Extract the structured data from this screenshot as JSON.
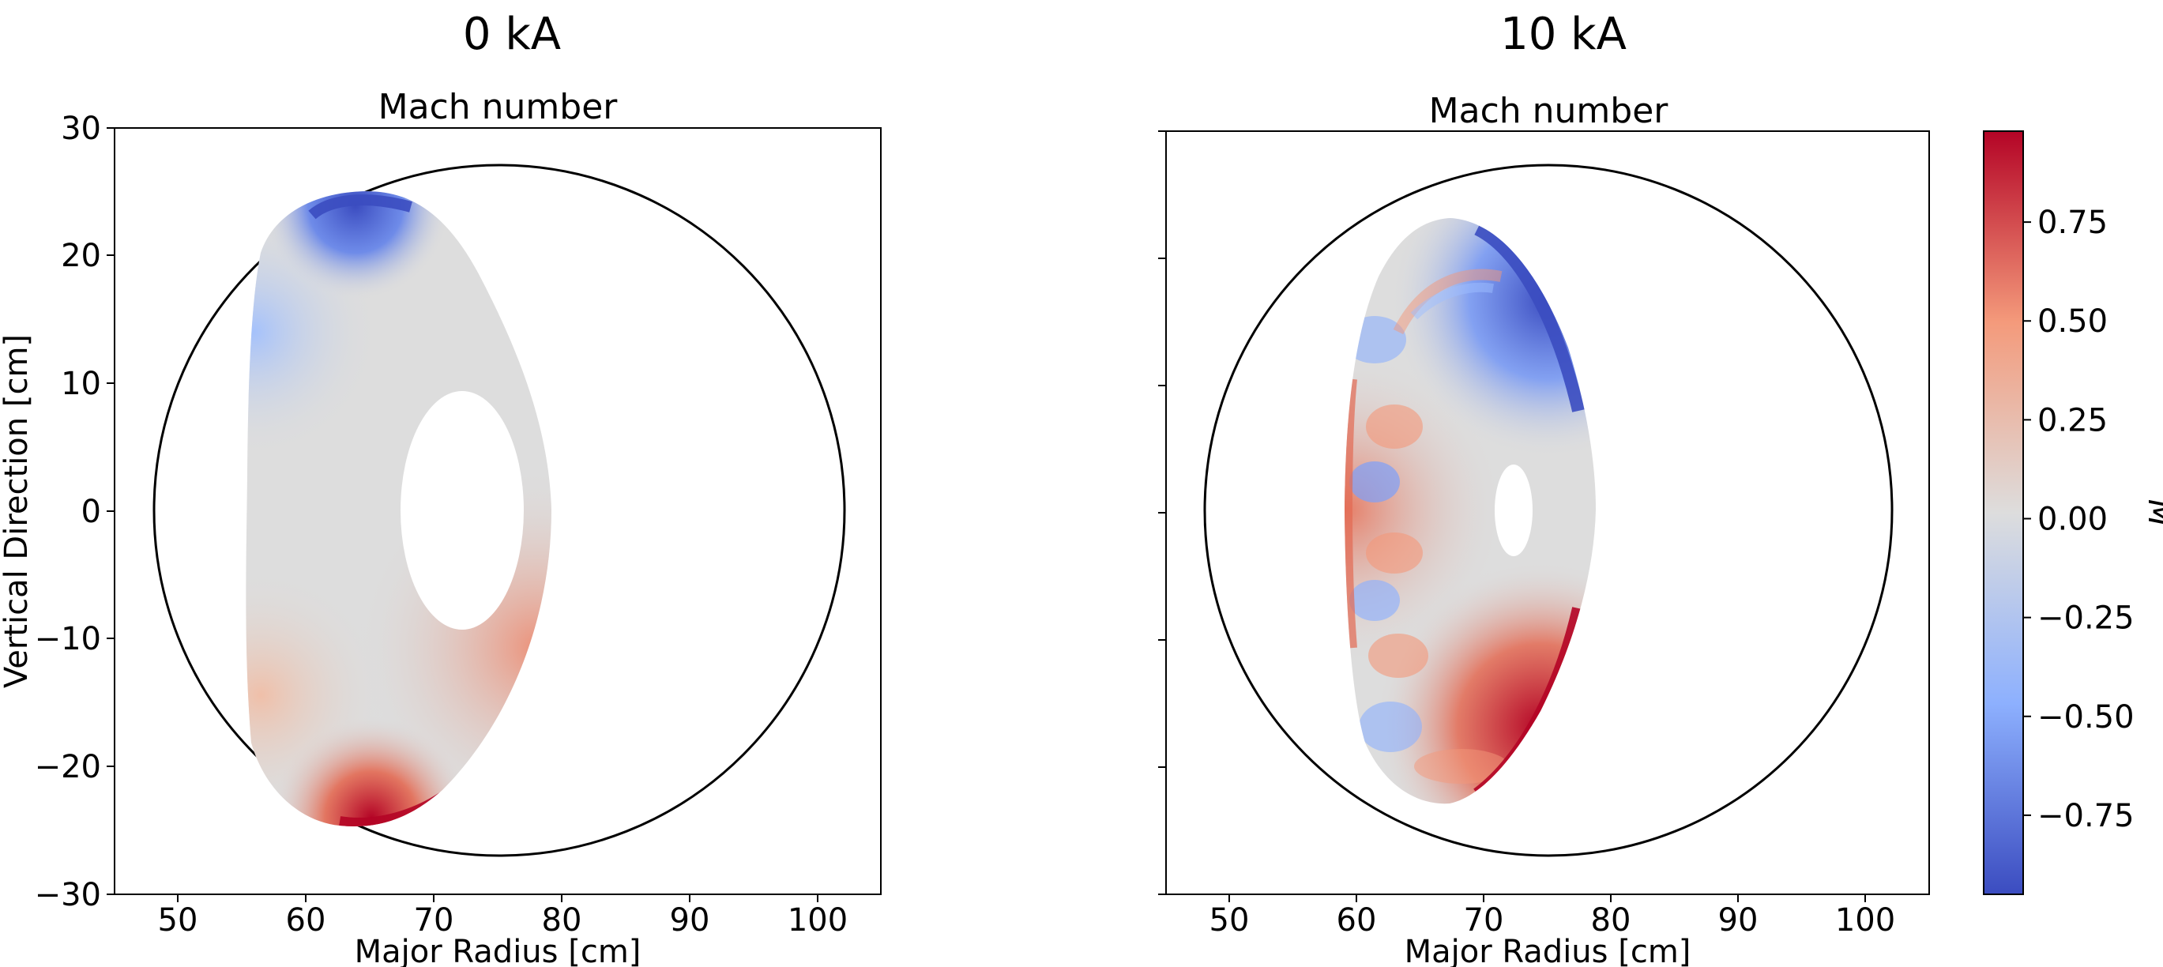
{
  "figure": {
    "panel_headers": [
      "0 kA",
      "10 kA"
    ],
    "colorbar_label": "M",
    "colormap": "coolwarm",
    "colorbar_range": [
      -0.95,
      0.98
    ],
    "colorbar_ticks": [
      "0.75",
      "0.50",
      "0.25",
      "0.00",
      "−0.25",
      "−0.50",
      "−0.75"
    ],
    "colorbar_tick_values": [
      0.75,
      0.5,
      0.25,
      0.0,
      -0.25,
      -0.5,
      -0.75
    ],
    "colors": {
      "cmap_low": "#3b4cc0",
      "cmap_mid": "#dddddd",
      "cmap_high": "#b40426",
      "frame": "#000000"
    }
  },
  "chart_data": [
    {
      "type": "heatmap",
      "panel_header": "0 kA",
      "title": "Mach number",
      "xlabel": "Major Radius [cm]",
      "ylabel": "Vertical Direction [cm]",
      "xlim": [
        45,
        105
      ],
      "ylim": [
        -30,
        30
      ],
      "xticks": [
        "50",
        "60",
        "70",
        "80",
        "90",
        "100"
      ],
      "yticks": [
        "30",
        "20",
        "10",
        "0",
        "−10",
        "−20",
        "−30"
      ],
      "vessel_boundary": {
        "center_r": 75,
        "center_z": 0,
        "radius": 27
      },
      "plasma_region": {
        "r_min": 55,
        "r_max": 79,
        "z_min": -25,
        "z_max": 25
      },
      "central_hole": {
        "center_r": 70.5,
        "center_z": 0,
        "half_width_r": 2.5,
        "half_height_z": 9.3
      },
      "mach_features": [
        {
          "region": "top edge",
          "r": [
            61,
            68
          ],
          "z": [
            22,
            25
          ],
          "mach": -0.95
        },
        {
          "region": "upper-left edge",
          "r": [
            56,
            62
          ],
          "z": [
            5,
            20
          ],
          "mach": -0.3
        },
        {
          "region": "bottom edge",
          "r": [
            62,
            70
          ],
          "z": [
            -25,
            -21
          ],
          "mach": 0.95
        },
        {
          "region": "lower-right edge",
          "r": [
            70,
            79
          ],
          "z": [
            -22,
            0
          ],
          "mach": 0.55
        },
        {
          "region": "interior",
          "r": [
            57,
            77
          ],
          "z": [
            -20,
            20
          ],
          "mach": 0.0
        }
      ]
    },
    {
      "type": "heatmap",
      "panel_header": "10 kA",
      "title": "Mach number",
      "xlabel": "Major Radius [cm]",
      "ylabel": "",
      "xlim": [
        45,
        105
      ],
      "ylim": [
        -30,
        30
      ],
      "xticks": [
        "50",
        "60",
        "70",
        "80",
        "90",
        "100"
      ],
      "yticks": [],
      "vessel_boundary": {
        "center_r": 75,
        "center_z": 0,
        "radius": 27
      },
      "plasma_region": {
        "r_min": 59,
        "r_max": 78,
        "z_min": -23,
        "z_max": 23
      },
      "central_hole": {
        "center_r": 72.3,
        "center_z": 0,
        "half_width_r": 1.5,
        "half_height_z": 3.5
      },
      "mach_features": [
        {
          "region": "upper-right edge",
          "r": [
            70,
            78
          ],
          "z": [
            5,
            22
          ],
          "mach": -0.9
        },
        {
          "region": "lower-right edge",
          "r": [
            70,
            78
          ],
          "z": [
            -22,
            -5
          ],
          "mach": 0.95
        },
        {
          "region": "left edge",
          "r": [
            59,
            64
          ],
          "z": [
            -15,
            15
          ],
          "mach": 0.5
        },
        {
          "region": "left interior bands",
          "r": [
            60,
            66
          ],
          "z": [
            -18,
            18
          ],
          "mach": -0.4
        },
        {
          "region": "interior",
          "r": [
            63,
            76
          ],
          "z": [
            -18,
            18
          ],
          "mach": 0.0
        }
      ]
    }
  ]
}
